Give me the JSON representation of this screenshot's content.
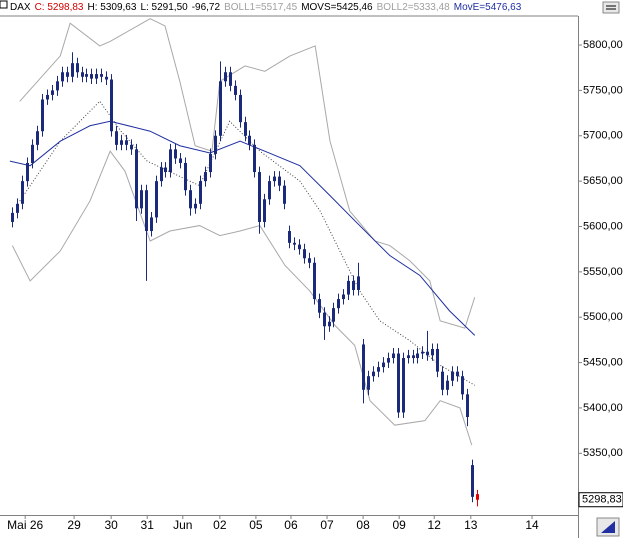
{
  "chart_data": {
    "type": "candlestick",
    "header": [
      {
        "text": "DAX",
        "color": "#000000"
      },
      {
        "text": "C: 5298,83",
        "color": "#d00000"
      },
      {
        "text": "H: 5309,63",
        "color": "#000000"
      },
      {
        "text": "L: 5291,50",
        "color": "#000000"
      },
      {
        "text": "-96,72",
        "color": "#000000"
      },
      {
        "text": "BOLL1=5517,45",
        "color": "#a0a0a0"
      },
      {
        "text": "MOVS=5425,46",
        "color": "#000000"
      },
      {
        "text": "BOLL2=5333,48",
        "color": "#a0a0a0"
      },
      {
        "text": "MovE=5476,63",
        "color": "#1f2fa0"
      }
    ],
    "color": "#1c2a7c",
    "current_color": "#e00000",
    "open": [
      5605,
      5615,
      5625,
      5650,
      5670,
      5690,
      5705,
      5740,
      5745,
      5750,
      5760,
      5770,
      5765,
      5780,
      5770,
      5765,
      5768,
      5763,
      5768,
      5765,
      5762,
      5705,
      5690,
      5695,
      5690,
      5685,
      5620,
      5640,
      5595,
      5610,
      5650,
      5665,
      5660,
      5685,
      5675,
      5670,
      5640,
      5620,
      5625,
      5650,
      5660,
      5680,
      5700,
      5760,
      5770,
      5755,
      5745,
      5715,
      5700,
      5690,
      5660,
      5605,
      5630,
      5650,
      5655,
      5645,
      5595,
      5582,
      5580,
      5575,
      5565,
      5560,
      5520,
      5505,
      5490,
      5495,
      5510,
      5520,
      5525,
      5540,
      5530,
      5470,
      5420,
      5435,
      5440,
      5445,
      5450,
      5455,
      5460,
      5395,
      5455,
      5458,
      5455,
      5460,
      5462,
      5458,
      5465,
      5440,
      5420,
      5430,
      5440,
      5435,
      5415,
      5337,
      5305
    ],
    "high": [
      5621,
      5631,
      5656,
      5676,
      5696,
      5711,
      5746,
      5751,
      5756,
      5766,
      5776,
      5776,
      5792,
      5786,
      5776,
      5774,
      5774,
      5774,
      5774,
      5771,
      5768,
      5711,
      5701,
      5701,
      5696,
      5691,
      5646,
      5646,
      5616,
      5656,
      5671,
      5671,
      5691,
      5691,
      5681,
      5676,
      5646,
      5631,
      5656,
      5666,
      5686,
      5706,
      5782,
      5776,
      5776,
      5761,
      5751,
      5721,
      5706,
      5696,
      5666,
      5636,
      5656,
      5661,
      5661,
      5651,
      5601,
      5588,
      5586,
      5581,
      5571,
      5566,
      5526,
      5511,
      5501,
      5516,
      5526,
      5531,
      5546,
      5546,
      5560,
      5476,
      5441,
      5446,
      5451,
      5456,
      5461,
      5466,
      5466,
      5461,
      5464,
      5464,
      5466,
      5468,
      5485,
      5471,
      5471,
      5446,
      5436,
      5446,
      5446,
      5441,
      5421,
      5343,
      5309.63
    ],
    "low": [
      5599,
      5609,
      5619,
      5644,
      5664,
      5684,
      5699,
      5734,
      5739,
      5744,
      5754,
      5759,
      5759,
      5764,
      5759,
      5759,
      5757,
      5757,
      5759,
      5756,
      5699,
      5684,
      5684,
      5684,
      5679,
      5606,
      5614,
      5540,
      5589,
      5604,
      5644,
      5654,
      5654,
      5669,
      5664,
      5634,
      5612,
      5614,
      5619,
      5644,
      5654,
      5674,
      5694,
      5754,
      5749,
      5739,
      5709,
      5694,
      5684,
      5654,
      5592,
      5599,
      5624,
      5644,
      5639,
      5619,
      5576,
      5574,
      5569,
      5559,
      5554,
      5514,
      5499,
      5475,
      5484,
      5489,
      5504,
      5514,
      5519,
      5524,
      5524,
      5405,
      5414,
      5429,
      5434,
      5439,
      5444,
      5449,
      5389,
      5389,
      5449,
      5449,
      5449,
      5454,
      5452,
      5452,
      5434,
      5414,
      5414,
      5424,
      5429,
      5409,
      5380,
      5296,
      5291.5
    ],
    "close": [
      5615,
      5625,
      5650,
      5670,
      5690,
      5705,
      5740,
      5745,
      5750,
      5760,
      5770,
      5765,
      5780,
      5770,
      5765,
      5768,
      5763,
      5768,
      5765,
      5762,
      5705,
      5690,
      5695,
      5690,
      5685,
      5620,
      5640,
      5595,
      5610,
      5650,
      5665,
      5660,
      5685,
      5675,
      5670,
      5640,
      5620,
      5625,
      5650,
      5660,
      5680,
      5700,
      5760,
      5770,
      5755,
      5745,
      5715,
      5700,
      5690,
      5660,
      5605,
      5630,
      5650,
      5655,
      5645,
      5625,
      5582,
      5580,
      5575,
      5565,
      5560,
      5520,
      5505,
      5490,
      5495,
      5510,
      5520,
      5525,
      5540,
      5530,
      5545,
      5420,
      5435,
      5440,
      5445,
      5450,
      5455,
      5460,
      5395,
      5455,
      5458,
      5455,
      5460,
      5462,
      5458,
      5465,
      5440,
      5420,
      5430,
      5440,
      5435,
      5415,
      5390,
      5302,
      5298.83
    ],
    "lines": [
      {
        "color": "#a8a8a8",
        "dash": "none",
        "x": [
          1.5,
          9.7,
          11.7,
          17.7,
          19.8,
          27.9,
          30.9,
          33.9,
          37,
          40.4,
          42,
          47.1,
          51.1,
          56.2,
          61.3,
          64.3,
          68.3,
          73.4,
          76.4,
          80.5,
          84.5,
          86.6,
          91.6,
          93.6
        ],
        "values": [
          5738,
          5788,
          5824,
          5799,
          5804,
          5829,
          5821,
          5760,
          5689,
          5683,
          5760,
          5777,
          5771,
          5788,
          5799,
          5694,
          5617,
          5584,
          5579,
          5562,
          5540,
          5496,
          5488,
          5522
        ]
      },
      {
        "color": "#a8a8a8",
        "dash": "none",
        "x": [
          0,
          3.6,
          9.7,
          15.7,
          19.8,
          22.8,
          27.9,
          31.9,
          37.9,
          42,
          46.1,
          50.1,
          55.2,
          60.2,
          65.3,
          69.3,
          72.4,
          77.4,
          83.5,
          86.6,
          90.6,
          93
        ],
        "values": [
          5579,
          5540,
          5573,
          5628,
          5683,
          5661,
          5584,
          5595,
          5601,
          5590,
          5595,
          5601,
          5557,
          5529,
          5491,
          5469,
          5408,
          5381,
          5386,
          5408,
          5400,
          5359
        ]
      },
      {
        "color": "#404040",
        "dash": "1 2",
        "x": [
          1.5,
          9.7,
          17.7,
          22,
          27.3,
          37.9,
          44,
          50.1,
          58.2,
          62.3,
          66.3,
          70.3,
          74.4,
          80.5,
          86.6,
          93.6
        ],
        "values": [
          5628,
          5694,
          5738,
          5705,
          5672,
          5645,
          5716,
          5683,
          5650,
          5617,
          5573,
          5529,
          5496,
          5474,
          5447,
          5425
        ]
      },
      {
        "color": "#1f2fa0",
        "dash": "none",
        "x": [
          -0.5,
          3.6,
          9.7,
          15.7,
          19.8,
          27.9,
          33.9,
          40,
          46.1,
          51.1,
          58.2,
          64.3,
          70.3,
          76.4,
          82.5,
          88.5,
          93.6
        ],
        "values": [
          5672,
          5667,
          5694,
          5711,
          5716,
          5705,
          5689,
          5681,
          5694,
          5683,
          5667,
          5634,
          5601,
          5568,
          5546,
          5507,
          5480
        ]
      }
    ],
    "price_marker": {
      "value": 5298.83,
      "label": "5298,83"
    },
    "xlim": [
      -2.5,
      114.5
    ],
    "xticks": [
      {
        "value": 2.6,
        "label": "Mai 26"
      },
      {
        "value": 12.5,
        "label": "29"
      },
      {
        "value": 20,
        "label": "30"
      },
      {
        "value": 27.3,
        "label": "31"
      },
      {
        "value": 34.5,
        "label": "Jun"
      },
      {
        "value": 42,
        "label": "02"
      },
      {
        "value": 49.3,
        "label": "05"
      },
      {
        "value": 56.4,
        "label": "06"
      },
      {
        "value": 63.7,
        "label": "07"
      },
      {
        "value": 71,
        "label": "08"
      },
      {
        "value": 78.3,
        "label": "09"
      },
      {
        "value": 85.4,
        "label": "12"
      },
      {
        "value": 92.8,
        "label": "13"
      },
      {
        "value": 105.2,
        "label": "14"
      }
    ],
    "ylim": [
      5282,
      5832
    ],
    "yticks": [
      {
        "value": 5350,
        "label": "5350,00"
      },
      {
        "value": 5400,
        "label": "5400,00"
      },
      {
        "value": 5450,
        "label": "5450,00"
      },
      {
        "value": 5500,
        "label": "5500,00"
      },
      {
        "value": 5550,
        "label": "5550,00"
      },
      {
        "value": 5600,
        "label": "5600,00"
      },
      {
        "value": 5650,
        "label": "5650,00"
      },
      {
        "value": 5700,
        "label": "5700,00"
      },
      {
        "value": 5750,
        "label": "5750,00"
      },
      {
        "value": 5800,
        "label": "5800,00"
      }
    ],
    "grid": false
  }
}
